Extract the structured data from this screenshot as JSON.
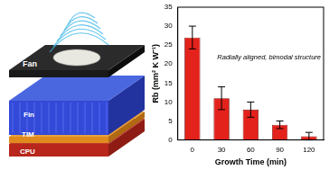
{
  "chart_data": {
    "type": "bar",
    "y_label": "Rb (mm² K W⁻¹)",
    "x_label": "Growth Time (min)",
    "annotations": [
      "Radially aligned, bimodal structure"
    ],
    "categories": [
      "0",
      "30",
      "60",
      "90",
      "120"
    ],
    "values": [
      27,
      11,
      8,
      4,
      1
    ],
    "errors": [
      3,
      3,
      2,
      1,
      1
    ],
    "color": "#e3221b",
    "ylim": [
      0,
      35
    ],
    "yticks": [
      0,
      5,
      10,
      15,
      20,
      25,
      30,
      35
    ],
    "grid": false
  },
  "diagram": {
    "layers": [
      "Fan",
      "Fin",
      "TIM",
      "CPU"
    ]
  }
}
